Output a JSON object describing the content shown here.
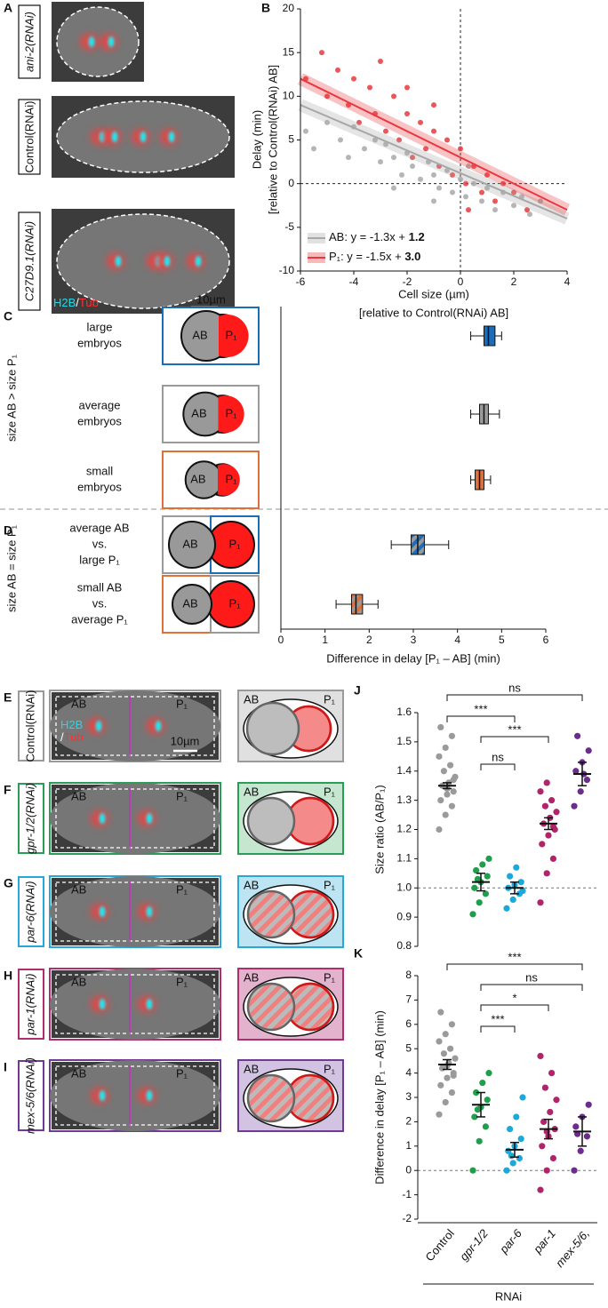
{
  "panel_letters": [
    "A",
    "B",
    "C",
    "D",
    "E",
    "F",
    "G",
    "H",
    "I",
    "J",
    "K"
  ],
  "panel_a": {
    "labels": [
      "ani-2(RNAi)",
      "Control(RNAi)",
      "C27D9.1(RNAi)"
    ],
    "channels": [
      "H2B",
      "/",
      "Tub"
    ],
    "scale": "10µm"
  },
  "chart_data": [
    {
      "type": "scatter",
      "xlim": [
        -6,
        4
      ],
      "xticks": [
        -6,
        -4,
        -2,
        0,
        2,
        4
      ],
      "ylim": [
        -10,
        20
      ],
      "yticks": [
        -10,
        -5,
        0,
        5,
        10,
        15,
        20
      ],
      "x_label": [
        "Cell size (µm)",
        "[relative to Control(RNAi) AB]"
      ],
      "y_label": [
        "Delay (min)",
        "[relative to Control(RNAi) AB]"
      ],
      "reference_lines": {
        "x": 0,
        "y": 0
      },
      "series": [
        {
          "name": "AB",
          "color": "#a8a8a8",
          "x": [
            -5.8,
            -5.5,
            -5,
            -4.5,
            -4.2,
            -4,
            -3.6,
            -3.2,
            -3,
            -2.8,
            -2.5,
            -2.2,
            -2,
            -1.8,
            -1.5,
            -1.2,
            -1,
            -0.8,
            -0.5,
            -0.3,
            0,
            0.2,
            0.5,
            0.8,
            1,
            1.3,
            1.6,
            2,
            2.3,
            2.6,
            3,
            -1,
            0.3,
            -2.5
          ],
          "values": [
            6,
            4,
            7,
            5,
            3,
            6.5,
            4,
            5,
            2.5,
            4.5,
            3,
            1,
            3.5,
            2,
            0.5,
            2.5,
            1,
            -0.5,
            1.5,
            -1,
            0.5,
            -1.5,
            0,
            -2,
            -0.5,
            -3,
            -1,
            -2.5,
            -1.5,
            -3.5,
            -2,
            -2,
            2,
            -0.5
          ]
        },
        {
          "name": "P₁",
          "color": "#e8383d",
          "x": [
            -5.8,
            -5.2,
            -5,
            -4.6,
            -4.2,
            -4,
            -3.8,
            -3.4,
            -3.2,
            -3,
            -2.8,
            -2.5,
            -2.3,
            -2,
            -1.8,
            -1.5,
            -1.3,
            -1,
            -0.8,
            -0.5,
            -0.3,
            0,
            0.2,
            0.5,
            0.8,
            1,
            1.3,
            1.6,
            2,
            2.5,
            -2,
            -1,
            0.3
          ],
          "values": [
            12,
            15,
            10,
            13,
            9,
            12,
            7,
            11,
            8,
            14,
            6,
            10,
            5,
            8,
            3,
            7,
            4,
            6,
            2,
            5,
            1,
            4,
            0,
            2,
            -1,
            1,
            -2,
            0,
            -1,
            -3,
            11,
            9,
            -3
          ]
        }
      ],
      "fits": [
        {
          "equation": ": y = -1.3x + ",
          "intercept": "1.2",
          "x": [
            -6,
            4
          ],
          "values": [
            9,
            -4
          ]
        },
        {
          "equation": ": y = -1.5x + ",
          "intercept": "3.0",
          "x": [
            -6,
            4
          ],
          "values": [
            12,
            -3
          ]
        }
      ]
    },
    {
      "type": "box",
      "xlim": [
        0,
        6
      ],
      "xticks": [
        0,
        1,
        2,
        3,
        4,
        5,
        6
      ],
      "x_label": "Difference in delay [P₁ – AB] (min)",
      "groups": [
        "size AB > size P₁",
        "size AB = size P₁"
      ],
      "cell_labels": [
        "AB",
        "P₁"
      ],
      "rows": [
        {
          "label": [
            "large",
            "embryos"
          ],
          "color": [
            "#1a6dbb"
          ],
          "frame": [
            "#1a6dbb"
          ],
          "min": 4.3,
          "q1": 4.6,
          "median": 4.7,
          "q3": 4.85,
          "max": 5.0
        },
        {
          "label": [
            "average",
            "embryos"
          ],
          "color": [
            "#9a9a9a"
          ],
          "frame": [
            "#9a9a9a"
          ],
          "min": 4.3,
          "q1": 4.5,
          "median": 4.6,
          "q3": 4.7,
          "max": 4.95
        },
        {
          "label": [
            "small",
            "embryos"
          ],
          "color": [
            "#e0703a"
          ],
          "frame": [
            "#e0703a"
          ],
          "min": 4.3,
          "q1": 4.4,
          "median": 4.5,
          "q3": 4.6,
          "max": 4.75
        },
        {
          "label": [
            "average AB",
            "vs.",
            "large P₁"
          ],
          "color": [
            "#1a6dbb",
            "#9a9a9a"
          ],
          "frame": [
            "#9a9a9a",
            "#1a6dbb"
          ],
          "min": 2.5,
          "q1": 2.95,
          "median": 3.1,
          "q3": 3.25,
          "max": 3.8
        },
        {
          "label": [
            "small AB",
            "vs.",
            "average P₁"
          ],
          "color": [
            "#e0703a",
            "#9a9a9a"
          ],
          "frame": [
            "#e0703a",
            "#9a9a9a"
          ],
          "min": 1.25,
          "q1": 1.6,
          "median": 1.7,
          "q3": 1.85,
          "max": 2.2
        }
      ]
    },
    {
      "type": "dot",
      "y_label": "Size ratio (AB/P₁)",
      "ylim": [
        0.8,
        1.6
      ],
      "yticks": [
        0.8,
        0.9,
        {
          "value": 1,
          "label": "1.0"
        },
        1.1,
        1.2,
        1.3,
        1.4,
        1.5,
        1.6
      ],
      "reference_line": 1,
      "colors": [
        "#9a9a9a",
        "#1f9e4c",
        "#1ca8d9",
        "#b0246a",
        "#6b2c8c"
      ],
      "points": [
        [
          1.2,
          1.25,
          1.28,
          1.3,
          1.32,
          1.33,
          1.35,
          1.36,
          1.38,
          1.4,
          1.42,
          1.45,
          1.48,
          1.52,
          1.55,
          1.34,
          1.37
        ],
        [
          0.91,
          0.95,
          0.98,
          1.0,
          1.02,
          1.04,
          1.06,
          1.08,
          1.1,
          1.03
        ],
        [
          0.93,
          0.96,
          0.98,
          1.0,
          1.01,
          1.02,
          1.04,
          1.07,
          0.99
        ],
        [
          0.95,
          1.05,
          1.1,
          1.15,
          1.18,
          1.2,
          1.22,
          1.24,
          1.26,
          1.28,
          1.3,
          1.33,
          1.36,
          1.21
        ],
        [
          1.28,
          1.33,
          1.37,
          1.4,
          1.43,
          1.47,
          1.52,
          1.39
        ]
      ],
      "mean": [
        1.35,
        1.02,
        1.0,
        1.22,
        1.39
      ],
      "error": [
        0.01,
        0.03,
        0.02,
        0.02,
        0.04
      ],
      "brackets": [
        {
          "from": 0,
          "to": 4,
          "label": "ns"
        },
        {
          "from": 0,
          "to": 2,
          "label": "***"
        },
        {
          "from": 1,
          "to": 3,
          "label": "***"
        },
        {
          "from": 1,
          "to": 2,
          "label": "ns"
        }
      ]
    },
    {
      "type": "dot",
      "y_label": "Difference in delay [P₁ – AB] (min)",
      "ylim": [
        -2,
        8
      ],
      "yticks": [
        -2,
        -1,
        0,
        1,
        2,
        3,
        4,
        5,
        6,
        7,
        8
      ],
      "reference_line": 0,
      "categories": [
        "Control",
        "gpr-1/2",
        "par-6",
        "par-1",
        "mex-5/6,"
      ],
      "group_label": "RNAi",
      "colors": [
        "#9a9a9a",
        "#1f9e4c",
        "#1ca8d9",
        "#b0246a",
        "#6b2c8c"
      ],
      "points": [
        [
          2.3,
          2.8,
          3.2,
          3.5,
          3.8,
          4.0,
          4.2,
          4.4,
          4.6,
          4.8,
          5.0,
          5.3,
          5.6,
          6.0,
          6.5,
          4.3,
          3.9
        ],
        [
          0,
          1.2,
          1.8,
          2.2,
          2.6,
          2.9,
          3.2,
          3.6,
          4.0,
          2.5
        ],
        [
          0,
          0.3,
          0.5,
          0.8,
          1.0,
          1.3,
          1.7,
          2.2,
          3.0,
          0.6
        ],
        [
          -0.8,
          0,
          0.5,
          1.0,
          1.4,
          1.7,
          2.0,
          2.4,
          2.9,
          3.4,
          4.0,
          4.7,
          1.6
        ],
        [
          0,
          0.8,
          1.4,
          1.8,
          2.2,
          2.7,
          1.5
        ]
      ],
      "mean": [
        4.35,
        2.7,
        0.85,
        1.7,
        1.6
      ],
      "error": [
        0.2,
        0.5,
        0.3,
        0.4,
        0.6
      ],
      "brackets": [
        {
          "from": 0,
          "to": 4,
          "label": "***"
        },
        {
          "from": 1,
          "to": 4,
          "label": "ns"
        },
        {
          "from": 1,
          "to": 3,
          "label": "*"
        },
        {
          "from": 1,
          "to": 2,
          "label": "***"
        }
      ]
    }
  ],
  "panels_e_i": {
    "cell_labels": [
      "AB",
      "P₁"
    ],
    "channels": [
      "H2B",
      "/",
      "Tub"
    ],
    "scale": "10µm",
    "rows": [
      {
        "label": "Control(RNAi)",
        "color": "#9a9a9a",
        "background": "#e0e0e0"
      },
      {
        "label": "gpr-1/2(RNAi)",
        "color": "#2a9e55",
        "background": "#c5e6cf"
      },
      {
        "label": "par-6(RNAi)",
        "color": "#27a8d6",
        "background": "#bde4f2"
      },
      {
        "label": "par-1(RNAi)",
        "color": "#b02d6e",
        "background": "#e3b3cd"
      },
      {
        "label": "mex-5/6(RNAi)",
        "color": "#6e3a93",
        "background": "#d3c3e3"
      }
    ]
  }
}
